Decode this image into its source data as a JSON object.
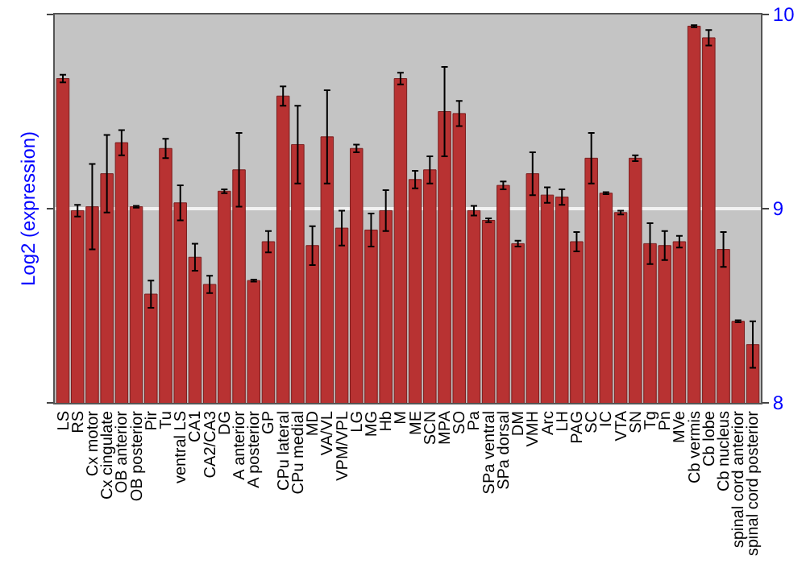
{
  "chart_data": {
    "type": "bar",
    "ylabel": "Log2 (expression)",
    "categories": [
      "LS",
      "RS",
      "Cx motor",
      "Cx cingulate",
      "OB anterior",
      "OB posterior",
      "Pir",
      "Tu",
      "ventral LS",
      "CA1",
      "CA2/CA3",
      "DG",
      "A anterior",
      "A posterior",
      "GP",
      "CPu lateral",
      "CPu medial",
      "MD",
      "VA/VL",
      "VPM/VPL",
      "LG",
      "MG",
      "Hb",
      "M",
      "ME",
      "SCN",
      "MPA",
      "SO",
      "Pa",
      "SPa ventral",
      "SPa dorsal",
      "DM",
      "VMH",
      "Arc",
      "LH",
      "PAG",
      "SC",
      "IC",
      "VTA",
      "SN",
      "Tg",
      "Pn",
      "MVe",
      "Cb vermis",
      "Cb lobe",
      "Cb nucleus",
      "spinal cord anterior",
      "spinal cord posterior"
    ],
    "values": [
      9.67,
      8.99,
      9.01,
      9.18,
      9.34,
      9.01,
      8.56,
      9.31,
      9.03,
      8.75,
      8.61,
      9.09,
      9.2,
      8.63,
      8.83,
      9.58,
      9.33,
      8.81,
      9.37,
      8.9,
      9.31,
      8.89,
      8.99,
      9.67,
      9.15,
      9.2,
      9.5,
      9.49,
      8.99,
      8.94,
      9.12,
      8.82,
      9.18,
      9.07,
      9.06,
      8.83,
      9.26,
      9.08,
      8.98,
      9.26,
      8.82,
      8.81,
      8.83,
      9.94,
      9.88,
      8.79,
      8.42,
      8.3
    ],
    "errors": [
      0.02,
      0.03,
      0.22,
      0.2,
      0.065,
      0.005,
      0.07,
      0.05,
      0.09,
      0.07,
      0.045,
      0.01,
      0.19,
      0.005,
      0.055,
      0.05,
      0.2,
      0.1,
      0.24,
      0.09,
      0.02,
      0.085,
      0.105,
      0.03,
      0.045,
      0.07,
      0.23,
      0.065,
      0.025,
      0.01,
      0.02,
      0.015,
      0.11,
      0.04,
      0.04,
      0.05,
      0.13,
      0.005,
      0.01,
      0.015,
      0.105,
      0.075,
      0.03,
      0.005,
      0.04,
      0.09,
      0.005,
      0.12
    ],
    "color": "#b83232",
    "ylim": [
      8,
      10
    ],
    "yticks": [
      8,
      9,
      10
    ],
    "grid": "y"
  }
}
